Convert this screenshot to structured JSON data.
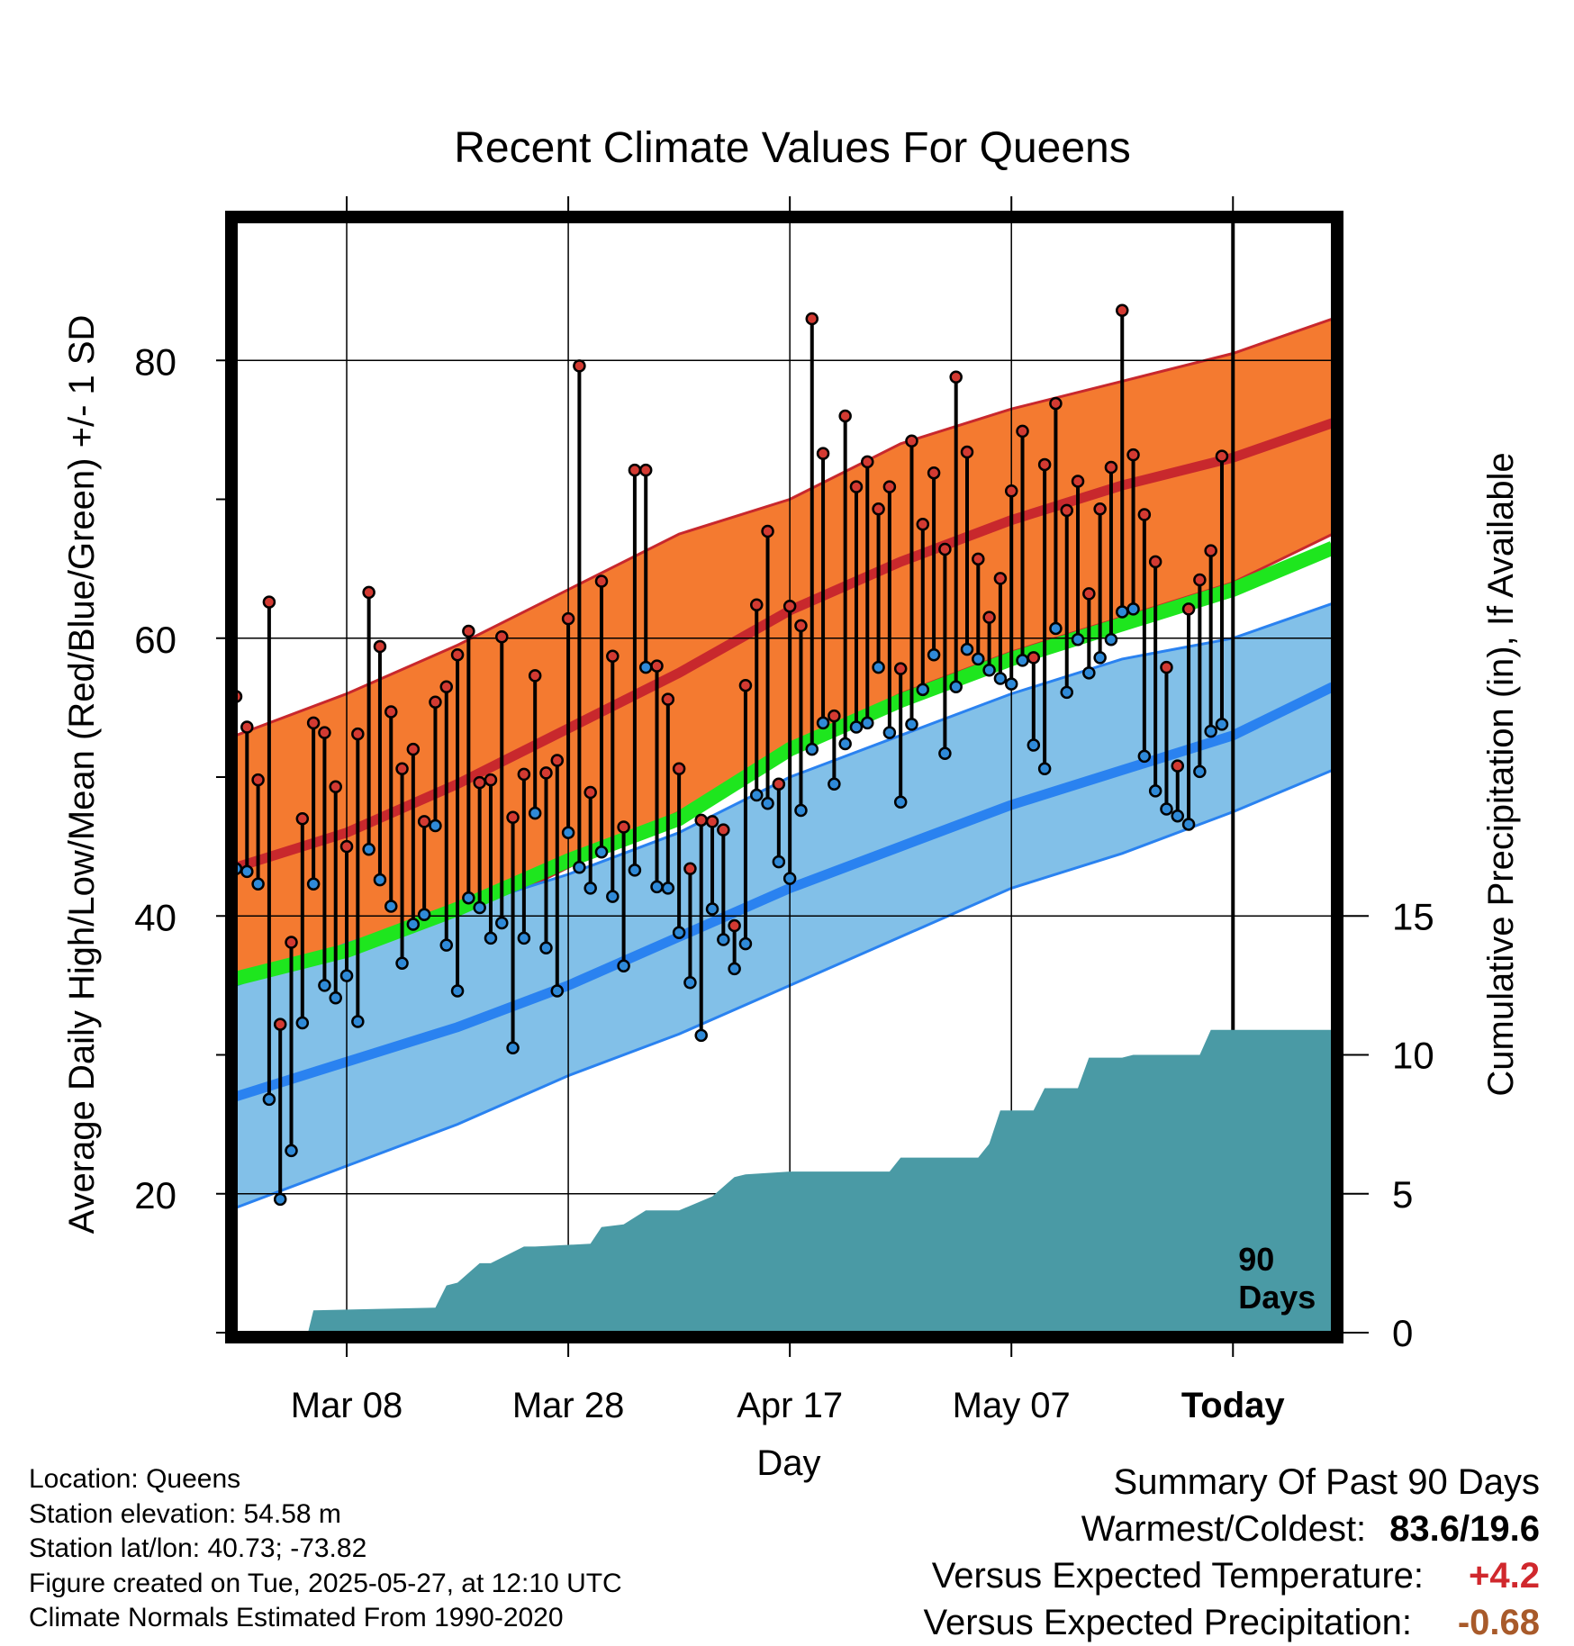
{
  "chart_data": {
    "type": "line",
    "title": "Recent Climate Values For Queens",
    "xlabel": "Day",
    "ylabel": "Average Daily High/Low/Mean (Red/Blue/Green) +/- 1 SD",
    "y2label": "Cumulative Precipitation (in), If Available",
    "ylim": [
      10,
      90
    ],
    "y2lim": [
      0,
      40
    ],
    "xlim": [
      0,
      99
    ],
    "yticks": [
      "20",
      "40",
      "60",
      "80"
    ],
    "y2ticks": [
      "0",
      "5",
      "10",
      "15"
    ],
    "xticks": [
      {
        "x": 10,
        "label": "Mar 08"
      },
      {
        "x": 30,
        "label": "Mar 28"
      },
      {
        "x": 50,
        "label": "Apr 17"
      },
      {
        "x": 70,
        "label": "May 07"
      },
      {
        "x": 90,
        "label": "Today"
      }
    ],
    "today_label": [
      "90",
      "Days"
    ],
    "grid": true,
    "normals": {
      "x": [
        0,
        10,
        20,
        30,
        40,
        50,
        60,
        70,
        80,
        90,
        99
      ],
      "high_mean": [
        43.5,
        46,
        49.5,
        53.5,
        57.5,
        62,
        65.5,
        68.5,
        71,
        73,
        75.5
      ],
      "high_upper": [
        53,
        56,
        59.5,
        63.5,
        67.5,
        70,
        74,
        76.5,
        78.5,
        80.5,
        83
      ],
      "high_lower": [
        34.5,
        36.5,
        39.5,
        43.5,
        47.5,
        52,
        56,
        59,
        61.5,
        64,
        67.5
      ],
      "low_mean": [
        27,
        29.5,
        32,
        35,
        38.5,
        42,
        45,
        48,
        50.5,
        53,
        56.5
      ],
      "low_upper": [
        35,
        38,
        40.5,
        43,
        46,
        50,
        53,
        56,
        58.5,
        60,
        62.5
      ],
      "low_lower": [
        19,
        22,
        25,
        28.5,
        31.5,
        35,
        38.5,
        42,
        44.5,
        47.5,
        50.5
      ],
      "avg_mean": [
        35.5,
        37.5,
        40.5,
        44,
        47,
        52,
        55.5,
        58.5,
        61,
        63.5,
        66.5
      ]
    },
    "series": [
      {
        "name": "High",
        "color": "#c8282d",
        "values": [
          55.8,
          53.6,
          49.8,
          62.6,
          32.2,
          38.1,
          47.0,
          53.9,
          53.2,
          49.3,
          45.0,
          53.1,
          63.3,
          59.4,
          54.7,
          50.6,
          52.0,
          46.8,
          55.4,
          56.5,
          58.8,
          60.5,
          49.6,
          49.8,
          60.1,
          47.1,
          50.2,
          57.3,
          50.3,
          51.2,
          61.4,
          79.6,
          48.9,
          64.1,
          58.7,
          46.4,
          72.1,
          72.1,
          58.0,
          55.6,
          50.6,
          43.4,
          46.9,
          46.8,
          46.2,
          39.3,
          56.6,
          62.4,
          67.7,
          49.5,
          62.3,
          60.9,
          83.0,
          73.3,
          54.4,
          76.0,
          70.9,
          72.7,
          69.3,
          70.9,
          57.8,
          74.2,
          68.2,
          71.9,
          66.4,
          78.8,
          73.4,
          65.7,
          61.5,
          64.3,
          70.6,
          74.9,
          58.6,
          72.5,
          76.9,
          69.2,
          71.3,
          63.2,
          69.3,
          72.3,
          83.6,
          73.2,
          68.9,
          65.5,
          57.9,
          50.8,
          62.1,
          64.2,
          66.3,
          73.1
        ]
      },
      {
        "name": "Low",
        "color": "#2a82d6",
        "values": [
          43.4,
          43.2,
          42.3,
          26.8,
          19.6,
          23.1,
          32.3,
          42.3,
          35.0,
          34.1,
          35.7,
          32.4,
          44.8,
          42.6,
          40.7,
          36.6,
          39.4,
          40.1,
          46.5,
          37.9,
          34.6,
          41.3,
          40.6,
          38.4,
          39.5,
          30.5,
          38.4,
          47.4,
          37.7,
          34.6,
          46.0,
          43.5,
          42.0,
          44.6,
          41.4,
          36.4,
          43.3,
          57.9,
          42.1,
          42.0,
          38.8,
          35.2,
          31.4,
          40.5,
          38.3,
          36.2,
          38.0,
          48.7,
          48.1,
          43.9,
          42.7,
          47.6,
          52.0,
          53.9,
          49.5,
          52.4,
          53.6,
          53.9,
          57.9,
          53.2,
          48.2,
          53.8,
          56.3,
          58.8,
          51.7,
          56.5,
          59.2,
          58.5,
          57.7,
          57.1,
          56.7,
          58.4,
          52.3,
          50.6,
          60.7,
          56.1,
          59.9,
          57.5,
          58.6,
          59.9,
          61.9,
          62.1,
          51.5,
          49.0,
          47.7,
          47.2,
          46.6,
          50.4,
          53.3,
          53.8
        ]
      },
      {
        "name": "Precipitation",
        "color": "#4a9aa5",
        "axis": "y2",
        "x": [
          0,
          6.5,
          7,
          18,
          19,
          20,
          22,
          23,
          26,
          27,
          32,
          33,
          35,
          37,
          40,
          43,
          45,
          46,
          50,
          59,
          60,
          67,
          68,
          69,
          72,
          73,
          76,
          77,
          80,
          81,
          84,
          85,
          87,
          88,
          99
        ],
        "values": [
          0,
          0,
          0.8,
          0.9,
          1.7,
          1.8,
          2.5,
          2.5,
          3.1,
          3.1,
          3.2,
          3.8,
          3.9,
          4.4,
          4.4,
          4.9,
          5.6,
          5.7,
          5.8,
          5.8,
          6.3,
          6.3,
          6.8,
          8.0,
          8.0,
          8.8,
          8.8,
          9.9,
          9.9,
          10.0,
          10.0,
          10.0,
          10.0,
          10.9,
          10.9
        ]
      }
    ],
    "colors": {
      "high_band": "#f47a30",
      "high_line": "#c8282d",
      "low_band": "#82c0e8",
      "low_line": "#2a82f0",
      "avg_line": "#1ee61e",
      "precip": "#4a9aa5",
      "dot_high": "#d33a32",
      "dot_low": "#2f8ad8"
    }
  },
  "info": {
    "location": "Location: Queens",
    "elevation": "Station elevation: 54.58 m",
    "latlon": "Station lat/lon: 40.73; -73.82",
    "created": "Figure created on Tue, 2025-05-27, at 12:10 UTC",
    "normals": "Climate Normals Estimated From 1990-2020"
  },
  "summary": {
    "title": "Summary Of Past 90 Days",
    "warmest_label": "Warmest/Coldest:",
    "warmest_value": "83.6/19.6",
    "temp_label": "Versus Expected Temperature:",
    "temp_value": "+4.2",
    "temp_color": "#d0282d",
    "precip_label": "Versus Expected Precipitation:",
    "precip_value": "-0.68",
    "precip_color": "#a85a2a"
  }
}
